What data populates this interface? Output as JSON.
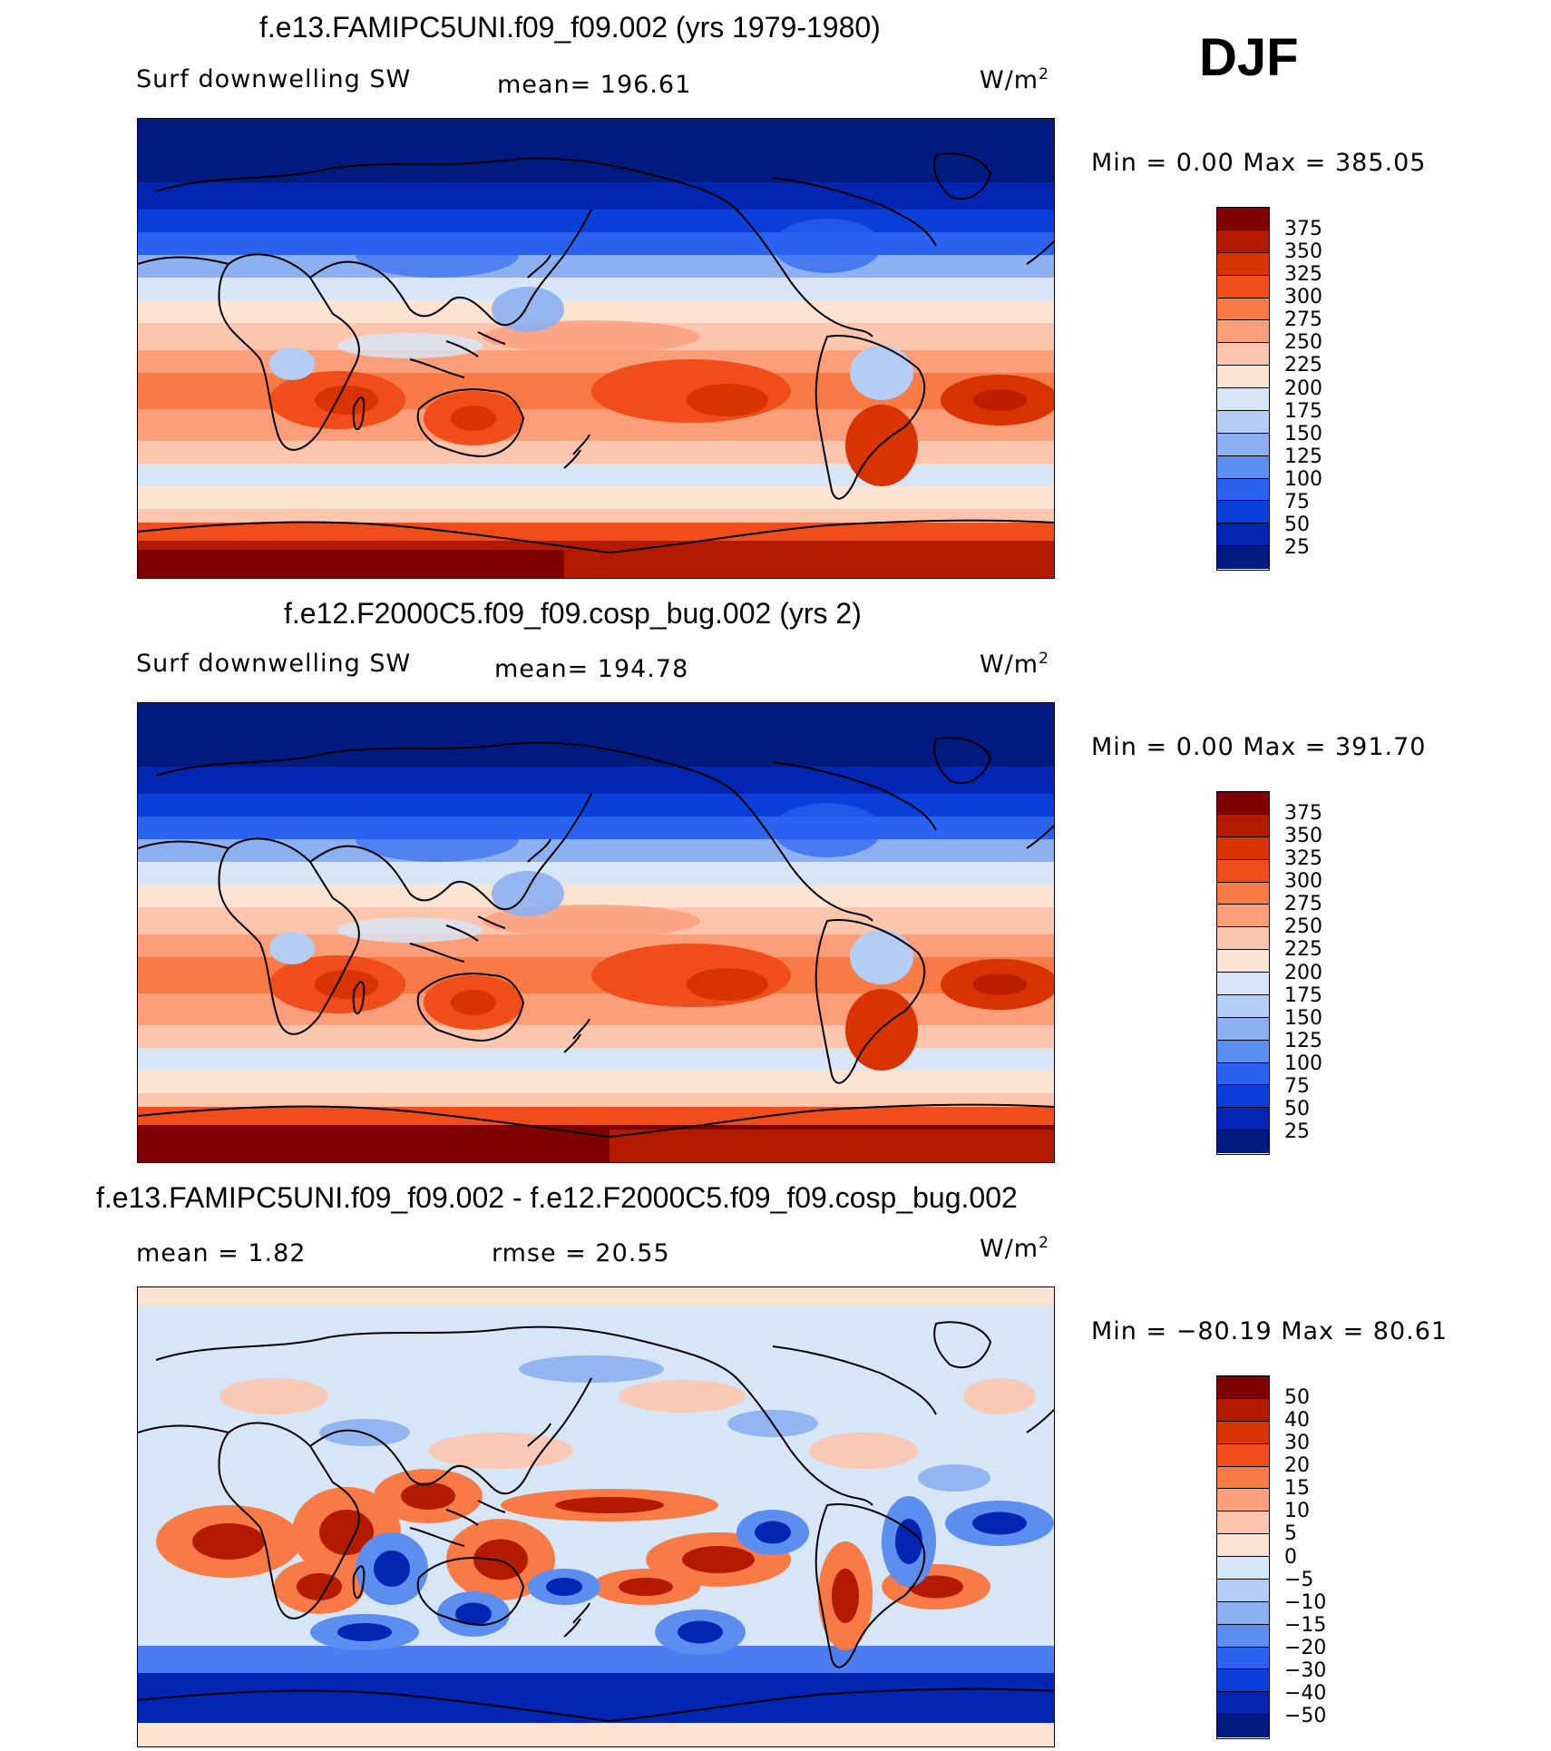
{
  "season": "DJF",
  "panels": [
    {
      "title": "f.e13.FAMIPC5UNI.f09_f09.002 (yrs 1979-1980)",
      "left_label": "Surf  downwelling SW",
      "stat_label": "mean=  196.61",
      "units_base": "W/m",
      "units_exp": "2",
      "minmax": "Min  =     0.00  Max  =  385.05",
      "colorbar": {
        "labels": [
          "375",
          "350",
          "325",
          "300",
          "275",
          "250",
          "225",
          "200",
          "175",
          "150",
          "125",
          "100",
          "75",
          "50",
          "25"
        ],
        "colors": [
          "#7f0000",
          "#b31a00",
          "#d93300",
          "#f04d1a",
          "#fa7a45",
          "#fd9e7a",
          "#fcc6ae",
          "#fde4d2",
          "#d6e6f7",
          "#b3cdf5",
          "#8cb0f2",
          "#5c8ef0",
          "#2a63f0",
          "#0a3fd9",
          "#0025b3",
          "#001a80"
        ]
      }
    },
    {
      "title": "f.e12.F2000C5.f09_f09.cosp_bug.002 (yrs 2)",
      "left_label": "Surf  downwelling SW",
      "stat_label": "mean=  194.78",
      "units_base": "W/m",
      "units_exp": "2",
      "minmax": "Min  =     0.00  Max  =  391.70",
      "colorbar": {
        "labels": [
          "375",
          "350",
          "325",
          "300",
          "275",
          "250",
          "225",
          "200",
          "175",
          "150",
          "125",
          "100",
          "75",
          "50",
          "25"
        ],
        "colors": [
          "#7f0000",
          "#b31a00",
          "#d93300",
          "#f04d1a",
          "#fa7a45",
          "#fd9e7a",
          "#fcc6ae",
          "#fde4d2",
          "#d6e6f7",
          "#b3cdf5",
          "#8cb0f2",
          "#5c8ef0",
          "#2a63f0",
          "#0a3fd9",
          "#0025b3",
          "#001a80"
        ]
      }
    },
    {
      "title": "f.e13.FAMIPC5UNI.f09_f09.002 - f.e12.F2000C5.f09_f09.cosp_bug.002",
      "left_label": "mean  =     1.82",
      "stat_label": "rmse  =    20.55",
      "units_base": "W/m",
      "units_exp": "2",
      "minmax": "Min  = −80.19  Max  =    80.61",
      "colorbar": {
        "labels": [
          "50",
          "40",
          "30",
          "20",
          "15",
          "10",
          "5",
          "0",
          "−5",
          "−10",
          "−15",
          "−20",
          "−30",
          "−40",
          "−50"
        ],
        "colors": [
          "#7f0000",
          "#b31a00",
          "#d93300",
          "#f04d1a",
          "#fa7a45",
          "#fd9e7a",
          "#fcc6ae",
          "#fde4d2",
          "#d6e6f7",
          "#b3cdf5",
          "#8cb0f2",
          "#5c8ef0",
          "#2a63f0",
          "#0a3fd9",
          "#0025b3",
          "#001a80"
        ]
      }
    }
  ]
}
